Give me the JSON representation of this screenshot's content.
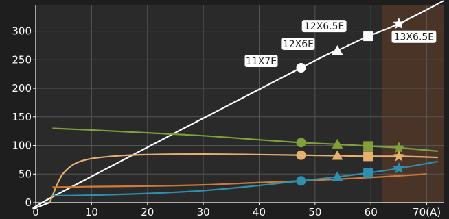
{
  "chart_data": {
    "type": "line",
    "title": "",
    "xlabel": "",
    "ylabel": "",
    "xlim": [
      0,
      73
    ],
    "ylim": [
      0,
      345
    ],
    "x_ticks": [
      "0",
      "10",
      "20",
      "30",
      "40",
      "50",
      "60",
      "70(A)"
    ],
    "y_ticks": [
      "0",
      "50",
      "100",
      "150",
      "200",
      "250",
      "300"
    ],
    "grid": true,
    "shaded_region": {
      "x_from": 62,
      "x_to": 73,
      "color": "#4a3428"
    },
    "series": [
      {
        "color": "#ffffff",
        "points": [
          [
            2.5,
            0
          ],
          [
            3,
            10
          ],
          [
            47.5,
            236
          ],
          [
            54,
            266
          ],
          [
            59.5,
            291
          ],
          [
            65,
            313
          ],
          [
            73,
            353
          ]
        ]
      },
      {
        "color": "#7fa03a",
        "points": [
          [
            3,
            130
          ],
          [
            10,
            127
          ],
          [
            20,
            122
          ],
          [
            30,
            117
          ],
          [
            40,
            110
          ],
          [
            47.5,
            105
          ],
          [
            54,
            102
          ],
          [
            59.5,
            99
          ],
          [
            65,
            96
          ],
          [
            72,
            90
          ]
        ]
      },
      {
        "color": "#e8b070",
        "points": [
          [
            2.5,
            0
          ],
          [
            3,
            12
          ],
          [
            4,
            35
          ],
          [
            5,
            52
          ],
          [
            7,
            68
          ],
          [
            10,
            77
          ],
          [
            15,
            82
          ],
          [
            20,
            84
          ],
          [
            30,
            85
          ],
          [
            40,
            84
          ],
          [
            47.5,
            83
          ],
          [
            54,
            82
          ],
          [
            59.5,
            81
          ],
          [
            65,
            81
          ],
          [
            72,
            79
          ]
        ]
      },
      {
        "color": "#d07a3a",
        "points": [
          [
            3,
            27
          ],
          [
            10,
            28
          ],
          [
            20,
            29
          ],
          [
            30,
            31
          ],
          [
            40,
            35
          ],
          [
            50,
            39
          ],
          [
            60,
            44
          ],
          [
            70,
            50
          ]
        ]
      },
      {
        "color": "#2e8fb0",
        "points": [
          [
            3,
            12
          ],
          [
            10,
            13
          ],
          [
            20,
            16
          ],
          [
            30,
            21
          ],
          [
            40,
            30
          ],
          [
            47.5,
            38
          ],
          [
            54,
            45
          ],
          [
            59.5,
            52
          ],
          [
            65,
            60
          ],
          [
            72,
            72
          ]
        ]
      }
    ],
    "markers": [
      {
        "shape": "circle",
        "x": 47.5,
        "y": 236,
        "color": "#ffffff",
        "label": "11X7E"
      },
      {
        "shape": "triangle",
        "x": 54,
        "y": 266,
        "color": "#ffffff",
        "label": "12X6E"
      },
      {
        "shape": "square",
        "x": 59.5,
        "y": 291,
        "color": "#ffffff",
        "label": "12X6.5E"
      },
      {
        "shape": "star",
        "x": 65,
        "y": 313,
        "color": "#ffffff",
        "label": "13X6.5E"
      },
      {
        "shape": "circle",
        "x": 47.5,
        "y": 105,
        "color": "#7fa03a"
      },
      {
        "shape": "triangle",
        "x": 54,
        "y": 102,
        "color": "#7fa03a"
      },
      {
        "shape": "square",
        "x": 59.5,
        "y": 99,
        "color": "#7fa03a"
      },
      {
        "shape": "star",
        "x": 65,
        "y": 96,
        "color": "#7fa03a"
      },
      {
        "shape": "circle",
        "x": 47.5,
        "y": 83,
        "color": "#e8b070"
      },
      {
        "shape": "triangle",
        "x": 54,
        "y": 82,
        "color": "#e8b070"
      },
      {
        "shape": "square",
        "x": 59.5,
        "y": 81,
        "color": "#e8b070"
      },
      {
        "shape": "star",
        "x": 65,
        "y": 81,
        "color": "#e8b070"
      },
      {
        "shape": "circle",
        "x": 47.5,
        "y": 38,
        "color": "#2e8fb0"
      },
      {
        "shape": "triangle",
        "x": 54,
        "y": 45,
        "color": "#2e8fb0"
      },
      {
        "shape": "square",
        "x": 59.5,
        "y": 52,
        "color": "#2e8fb0"
      },
      {
        "shape": "star",
        "x": 65,
        "y": 60,
        "color": "#2e8fb0"
      }
    ]
  }
}
